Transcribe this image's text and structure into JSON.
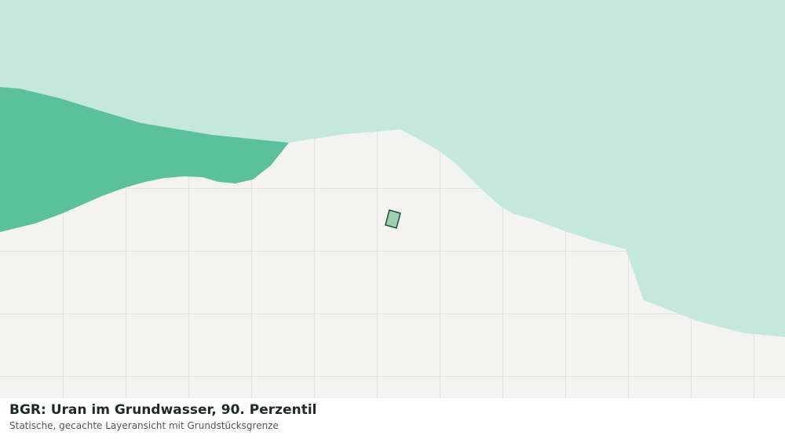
{
  "map": {
    "title": "BGR: Uran im Grundwasser, 90. Perzentil",
    "subtitle": "Statische, gecachte Layeransicht mit Grundstücksgrenze"
  }
}
